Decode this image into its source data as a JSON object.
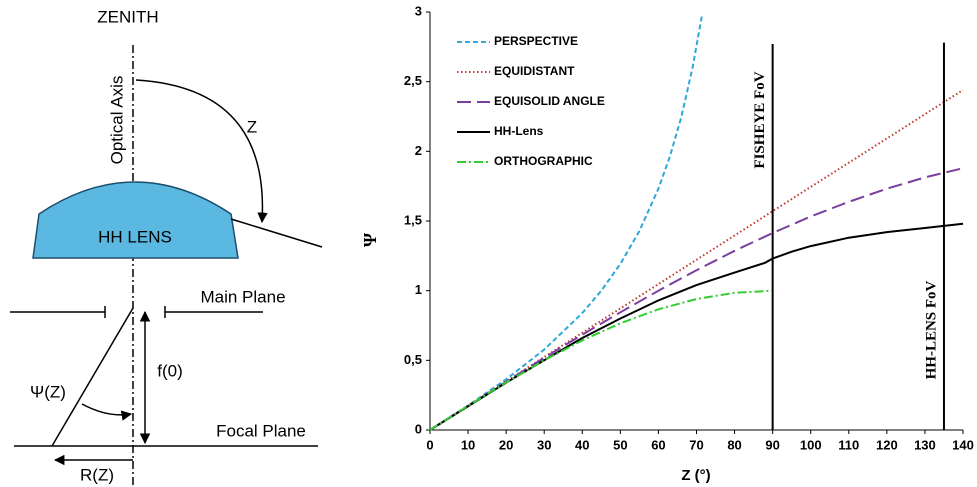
{
  "diagram": {
    "labels": [
      "ZENITH",
      "Optical Axis",
      "Z",
      "HH LENS",
      "Main Plane",
      "f(0)",
      "Ψ(Z)",
      "Focal Plane",
      "R(Z)"
    ]
  },
  "chart_data": {
    "type": "line",
    "xlabel": "Z (°)",
    "ylabel": "Ψ",
    "xlim": [
      0,
      140
    ],
    "xticks": [
      0,
      10,
      20,
      30,
      40,
      50,
      60,
      70,
      80,
      90,
      100,
      110,
      120,
      130,
      140
    ],
    "ylim": [
      0,
      3
    ],
    "yticks": [
      0,
      {
        "value": 0.5,
        "label": "0,5"
      },
      1,
      {
        "value": 1.5,
        "label": "1,5"
      },
      2,
      {
        "value": 2.5,
        "label": "2,5"
      },
      3
    ],
    "legend": "upper left",
    "series": [
      {
        "name": "PERSPECTIVE",
        "color": "#2ea8d8",
        "dash": "dashed",
        "x": [
          0,
          10,
          20,
          30,
          40,
          45,
          50,
          55,
          60,
          63,
          66,
          69,
          71.4
        ],
        "values": [
          0,
          0.176,
          0.364,
          0.577,
          0.839,
          1.0,
          1.192,
          1.428,
          1.732,
          1.963,
          2.246,
          2.605,
          2.97
        ]
      },
      {
        "name": "EQUIDISTANT",
        "color": "#c0392b",
        "dash": "dotted",
        "x": [
          0,
          90,
          140
        ],
        "values": [
          0,
          1.57,
          2.44
        ]
      },
      {
        "name": "EQUISOLID ANGLE",
        "color": "#7b3fa0",
        "dash": "longdash",
        "x": [
          0,
          10,
          20,
          30,
          40,
          50,
          60,
          70,
          80,
          90,
          100,
          110,
          120,
          130,
          140
        ],
        "values": [
          0,
          0.174,
          0.347,
          0.518,
          0.684,
          0.845,
          1.0,
          1.147,
          1.286,
          1.414,
          1.532,
          1.638,
          1.732,
          1.813,
          1.879
        ]
      },
      {
        "name": "HH-Lens",
        "color": "#000000",
        "dash": "solid",
        "x": [
          0,
          10,
          20,
          30,
          40,
          50,
          60,
          70,
          80,
          88,
          90,
          95,
          100,
          110,
          120,
          130,
          140
        ],
        "values": [
          0,
          0.17,
          0.34,
          0.5,
          0.66,
          0.8,
          0.93,
          1.04,
          1.13,
          1.2,
          1.23,
          1.28,
          1.32,
          1.38,
          1.42,
          1.45,
          1.48
        ]
      },
      {
        "name": "ORTHOGRAPHIC",
        "color": "#33cc33",
        "dash": "dashdot",
        "x": [
          0,
          10,
          20,
          30,
          40,
          50,
          60,
          70,
          80,
          90
        ],
        "values": [
          0,
          0.174,
          0.342,
          0.5,
          0.643,
          0.766,
          0.866,
          0.94,
          0.985,
          1.0
        ]
      }
    ],
    "vlines": [
      {
        "label": "FISHEYE FoV",
        "x": 90,
        "ytop": 2.77
      },
      {
        "label": "HH-LENS FoV",
        "x": 135,
        "ytop": 2.78
      }
    ]
  }
}
